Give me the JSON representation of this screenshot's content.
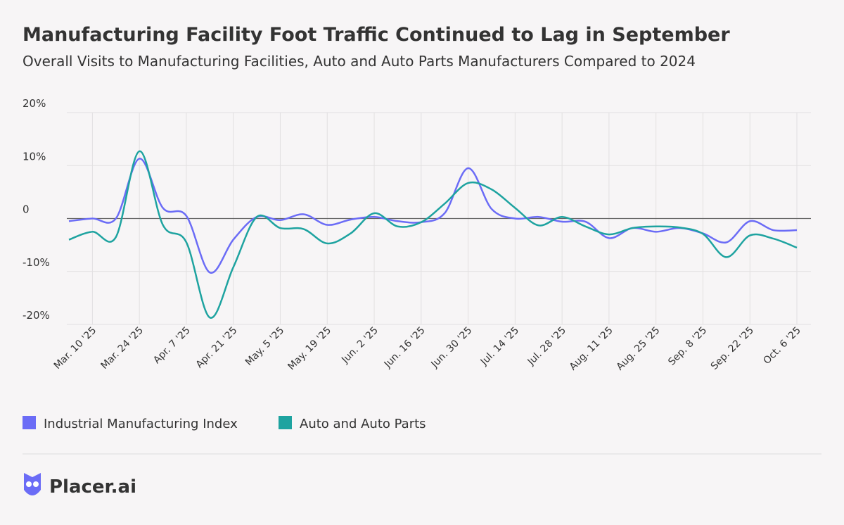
{
  "chart_data": {
    "type": "line",
    "title": "Manufacturing Facility Foot Traffic Continued to Lag in September",
    "subtitle": "Overall Visits to Manufacturing Facilities, Auto and Auto Parts Manufacturers Compared to 2024",
    "categories": [
      null,
      "Mar. 10 '25",
      null,
      "Mar. 24 '25",
      null,
      "Apr. 7 '25",
      null,
      "Apr. 21 '25",
      null,
      "May. 5 '25",
      null,
      "May. 19 '25",
      null,
      "Jun. 2 '25",
      null,
      "Jun. 16 '25",
      null,
      "Jun. 30 '25",
      null,
      "Jul. 14 '25",
      null,
      "Jul. 28 '25",
      null,
      "Aug. 11 '25",
      null,
      "Aug. 25 '25",
      null,
      "Sep. 8 '25",
      null,
      "Sep. 22 '25",
      null,
      "Oct. 6 '25"
    ],
    "series": [
      {
        "name": "Industrial Manufacturing Index",
        "color": "#6b6cf6",
        "values": [
          -0.5,
          0,
          0,
          11.3,
          2,
          0.5,
          -10.2,
          -4,
          0.3,
          -0.3,
          0.8,
          -1.2,
          -0.2,
          0.3,
          -0.5,
          -0.7,
          1,
          9.5,
          1.8,
          0,
          0.3,
          -0.6,
          -0.6,
          -3.7,
          -1.8,
          -2.5,
          -1.8,
          -2.8,
          -4.5,
          -0.5,
          -2.2,
          -2.2
        ]
      },
      {
        "name": "Auto and Auto Parts",
        "color": "#1ea3a0",
        "values": [
          -4,
          -2.5,
          -3.5,
          12.7,
          -1.2,
          -4.5,
          -18.7,
          -9.2,
          0.3,
          -1.8,
          -2,
          -4.7,
          -2.8,
          1,
          -1.5,
          -0.7,
          2.8,
          6.7,
          5.5,
          2,
          -1.3,
          0.3,
          -1.5,
          -3,
          -1.8,
          -1.5,
          -1.7,
          -2.9,
          -7.3,
          -3.2,
          -3.8,
          -5.5
        ]
      }
    ],
    "ylim": [
      -20,
      20
    ],
    "yticks": [
      {
        "value": 20,
        "label": "20%"
      },
      {
        "value": 10,
        "label": "10%"
      },
      0,
      {
        "value": -10,
        "label": "-10%"
      },
      {
        "value": -20,
        "label": "-20%"
      }
    ],
    "grid": true,
    "legend": "bottom"
  },
  "brand": "Placer.ai"
}
